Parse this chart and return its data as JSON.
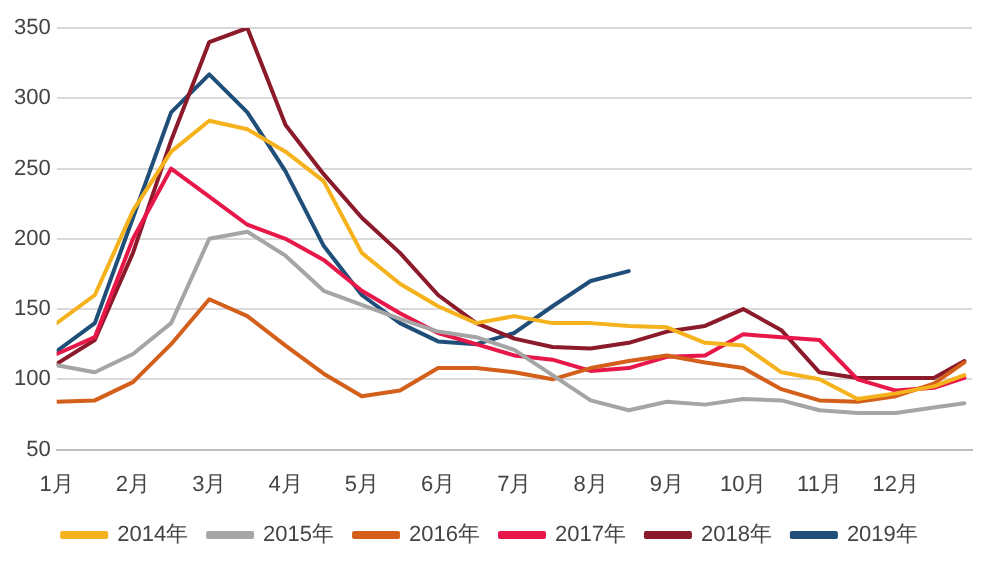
{
  "chart_data": {
    "type": "line",
    "x": [
      1,
      1.5,
      2,
      2.5,
      3,
      3.5,
      4,
      4.5,
      5,
      5.5,
      6,
      6.5,
      7,
      7.5,
      8,
      8.5,
      9,
      9.5,
      10,
      10.5,
      11,
      11.5,
      12,
      12.5,
      12.9
    ],
    "xlim": [
      1,
      13
    ],
    "xticks": [
      {
        "value": 1,
        "label": "1月"
      },
      {
        "value": 2,
        "label": "2月"
      },
      {
        "value": 3,
        "label": "3月"
      },
      {
        "value": 4,
        "label": "4月"
      },
      {
        "value": 5,
        "label": "5月"
      },
      {
        "value": 6,
        "label": "6月"
      },
      {
        "value": 7,
        "label": "7月"
      },
      {
        "value": 8,
        "label": "8月"
      },
      {
        "value": 9,
        "label": "9月"
      },
      {
        "value": 10,
        "label": "10月"
      },
      {
        "value": 11,
        "label": "11月"
      },
      {
        "value": 12,
        "label": "12月"
      }
    ],
    "ylim": [
      50,
      350
    ],
    "yticks": [
      50,
      100,
      150,
      200,
      250,
      300,
      350
    ],
    "grid": "y",
    "legend": "bottom",
    "marker": "none",
    "line_style": "solid",
    "series": [
      {
        "name": "2014年",
        "color": "#f5b21c",
        "values": [
          140,
          160,
          220,
          262,
          284,
          278,
          262,
          241,
          190,
          168,
          152,
          140,
          145,
          140,
          140,
          138,
          137,
          126,
          124,
          105,
          100,
          86,
          90,
          95,
          103
        ]
      },
      {
        "name": "2015年",
        "color": "#a5a5a5",
        "values": [
          110,
          105,
          118,
          140,
          200,
          205,
          188,
          163,
          153,
          143,
          134,
          130,
          121,
          103,
          85,
          78,
          84,
          82,
          86,
          85,
          78,
          76,
          76,
          80,
          83
        ]
      },
      {
        "name": "2016年",
        "color": "#d35f1a",
        "values": [
          84,
          85,
          98,
          125,
          157,
          145,
          124,
          104,
          88,
          92,
          108,
          108,
          105,
          100,
          108,
          113,
          117,
          112,
          108,
          93,
          85,
          84,
          88,
          97,
          112
        ]
      },
      {
        "name": "2017年",
        "color": "#e8174a",
        "values": [
          118,
          130,
          200,
          250,
          230,
          210,
          200,
          185,
          163,
          147,
          133,
          125,
          117,
          114,
          106,
          108,
          116,
          117,
          132,
          130,
          128,
          100,
          92,
          94,
          101
        ]
      },
      {
        "name": "2018年",
        "color": "#8b1a2b",
        "values": [
          111,
          128,
          190,
          270,
          340,
          350,
          281,
          246,
          215,
          190,
          160,
          140,
          129,
          123,
          122,
          126,
          134,
          138,
          150,
          135,
          105,
          101,
          101,
          101,
          113
        ]
      },
      {
        "name": "2019年",
        "color": "#1f4e79",
        "values": [
          120,
          140,
          215,
          290,
          317,
          290,
          248,
          195,
          160,
          140,
          127,
          125,
          133,
          152,
          170,
          177,
          null,
          null,
          null,
          null,
          null,
          null,
          null,
          null,
          null
        ]
      }
    ]
  }
}
